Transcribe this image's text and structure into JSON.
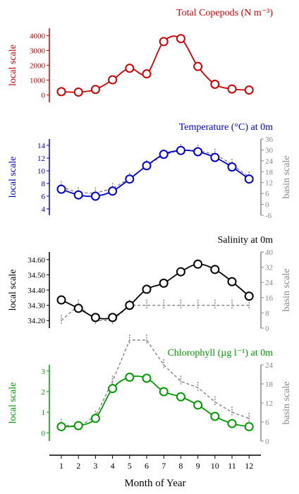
{
  "chart_data": [
    {
      "type": "line",
      "title": "Total Copepods (N m⁻³)",
      "color": "#cc0000",
      "ylabel_left": "local scale",
      "ylabel_right": "",
      "ylim_left": [
        -500,
        4500
      ],
      "yticks_left": [
        0,
        1000,
        2000,
        3000,
        4000
      ],
      "x": [
        1,
        2,
        3,
        4,
        5,
        6,
        7,
        8,
        9,
        10,
        11,
        12
      ],
      "series": [
        {
          "values": [
            220,
            190,
            370,
            1020,
            1800,
            1420,
            3600,
            3800,
            1920,
            720,
            400,
            330
          ],
          "axis": "left"
        }
      ]
    },
    {
      "type": "line",
      "title": "Temperature (°C) at 0m",
      "color": "#0000cc",
      "ylabel_left": "local scale",
      "ylabel_right": "basin scale",
      "ylim_left": [
        3,
        15
      ],
      "yticks_left": [
        4,
        6,
        8,
        10,
        12,
        14
      ],
      "ylim_right": [
        -6,
        36
      ],
      "yticks_right": [
        -6,
        0,
        6,
        12,
        18,
        24,
        30,
        36
      ],
      "x": [
        1,
        2,
        3,
        4,
        5,
        6,
        7,
        8,
        9,
        10,
        11,
        12
      ],
      "series": [
        {
          "values": [
            7.1,
            6.2,
            6.0,
            6.8,
            8.7,
            10.8,
            12.6,
            13.2,
            13.0,
            12.1,
            10.6,
            8.7
          ],
          "axis": "left"
        },
        {
          "values": [
            7.5,
            6.5,
            6.5,
            7.2,
            8.8,
            10.8,
            12.5,
            13.3,
            13.2,
            12.6,
            11.0,
            9.0
          ],
          "axis": "right",
          "style": "dashed"
        }
      ]
    },
    {
      "type": "line",
      "title": "Salinity at 0m",
      "color": "#000000",
      "ylabel_left": "local scale",
      "ylabel_right": "basin scale",
      "ylim_left": [
        34.15,
        34.65
      ],
      "yticks_left": [
        34.2,
        34.3,
        34.4,
        34.5,
        34.6
      ],
      "ytick_labels_left": [
        "34.20",
        "34.30",
        "34.40",
        "34.50",
        "34.60"
      ],
      "ylim_right": [
        0,
        40
      ],
      "yticks_right": [
        0,
        8,
        16,
        24,
        32,
        40
      ],
      "x": [
        1,
        2,
        3,
        4,
        5,
        6,
        7,
        8,
        9,
        10,
        11,
        12
      ],
      "series": [
        {
          "values": [
            34.335,
            34.28,
            34.22,
            34.22,
            34.3,
            34.405,
            34.445,
            34.52,
            34.57,
            34.535,
            34.455,
            34.36
          ],
          "axis": "left"
        },
        {
          "values": [
            34.2,
            34.3,
            34.2,
            34.2,
            34.3,
            34.3,
            34.3,
            34.3,
            34.3,
            34.3,
            34.3,
            34.3
          ],
          "axis": "right",
          "style": "dashed"
        }
      ]
    },
    {
      "type": "line",
      "title": "Chlorophyll (µg l⁻¹) at 0m",
      "color": "#009900",
      "ylabel_left": "local scale",
      "ylabel_right": "basin scale",
      "ylim_left": [
        -0.4,
        3.3
      ],
      "yticks_left": [
        0,
        1,
        2,
        3
      ],
      "ylim_right": [
        0,
        24
      ],
      "yticks_right": [
        0,
        6,
        12,
        18,
        24
      ],
      "x": [
        1,
        2,
        3,
        4,
        5,
        6,
        7,
        8,
        9,
        10,
        11,
        12
      ],
      "series": [
        {
          "values": [
            0.3,
            0.35,
            0.7,
            2.15,
            2.7,
            2.65,
            2.0,
            1.75,
            1.35,
            0.8,
            0.45,
            0.3
          ],
          "axis": "left"
        },
        {
          "values": [
            0.4,
            0.3,
            0.8,
            2.5,
            4.5,
            4.5,
            3.3,
            2.5,
            2.2,
            1.5,
            1.0,
            0.7
          ],
          "axis": "right",
          "style": "dashed"
        }
      ]
    }
  ],
  "x_axis": {
    "label": "Month of Year",
    "ticks": [
      1,
      2,
      3,
      4,
      5,
      6,
      7,
      8,
      9,
      10,
      11,
      12
    ]
  }
}
